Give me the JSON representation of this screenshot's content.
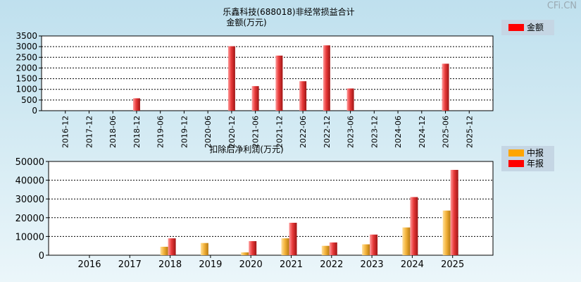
{
  "watermark": "CFi.CN",
  "chart_data": [
    {
      "type": "bar",
      "title": "乐鑫科技(688018)非经常损益合计",
      "subtitle": "金额(万元)",
      "categories": [
        "2016-12",
        "2017-12",
        "2018-06",
        "2018-12",
        "2019-06",
        "2019-12",
        "2020-06",
        "2020-12",
        "2021-06",
        "2021-12",
        "2022-06",
        "2022-12",
        "2023-06",
        "2023-12",
        "2024-06",
        "2024-12",
        "2025-06",
        "2025-12"
      ],
      "series": [
        {
          "name": "金额",
          "color": "#ff0000",
          "values": [
            0,
            0,
            0,
            580,
            0,
            0,
            0,
            3020,
            1150,
            2580,
            1380,
            3060,
            1040,
            0,
            0,
            0,
            2200,
            0
          ]
        }
      ],
      "yticks": [
        0,
        500,
        1000,
        1500,
        2000,
        2500,
        3000,
        3500
      ],
      "ylim": [
        0,
        3500
      ],
      "grid": true,
      "legend": "top-right"
    },
    {
      "type": "bar",
      "title": "扣除后净利润(万元)",
      "categories": [
        "2016",
        "2017",
        "2018",
        "2019",
        "2020",
        "2021",
        "2022",
        "2023",
        "2024",
        "2025"
      ],
      "series": [
        {
          "name": "中报",
          "color": "#ffa500",
          "values": [
            0,
            0,
            4500,
            6500,
            1500,
            9000,
            5000,
            5800,
            14800,
            23800
          ]
        },
        {
          "name": "年报",
          "color": "#ff0000",
          "values": [
            0,
            0,
            9000,
            0,
            7500,
            17300,
            6800,
            11000,
            31000,
            45500
          ]
        }
      ],
      "yticks": [
        0,
        10000,
        20000,
        30000,
        40000,
        50000
      ],
      "ylim": [
        0,
        50000
      ],
      "grid": true,
      "legend": "top-right"
    }
  ]
}
